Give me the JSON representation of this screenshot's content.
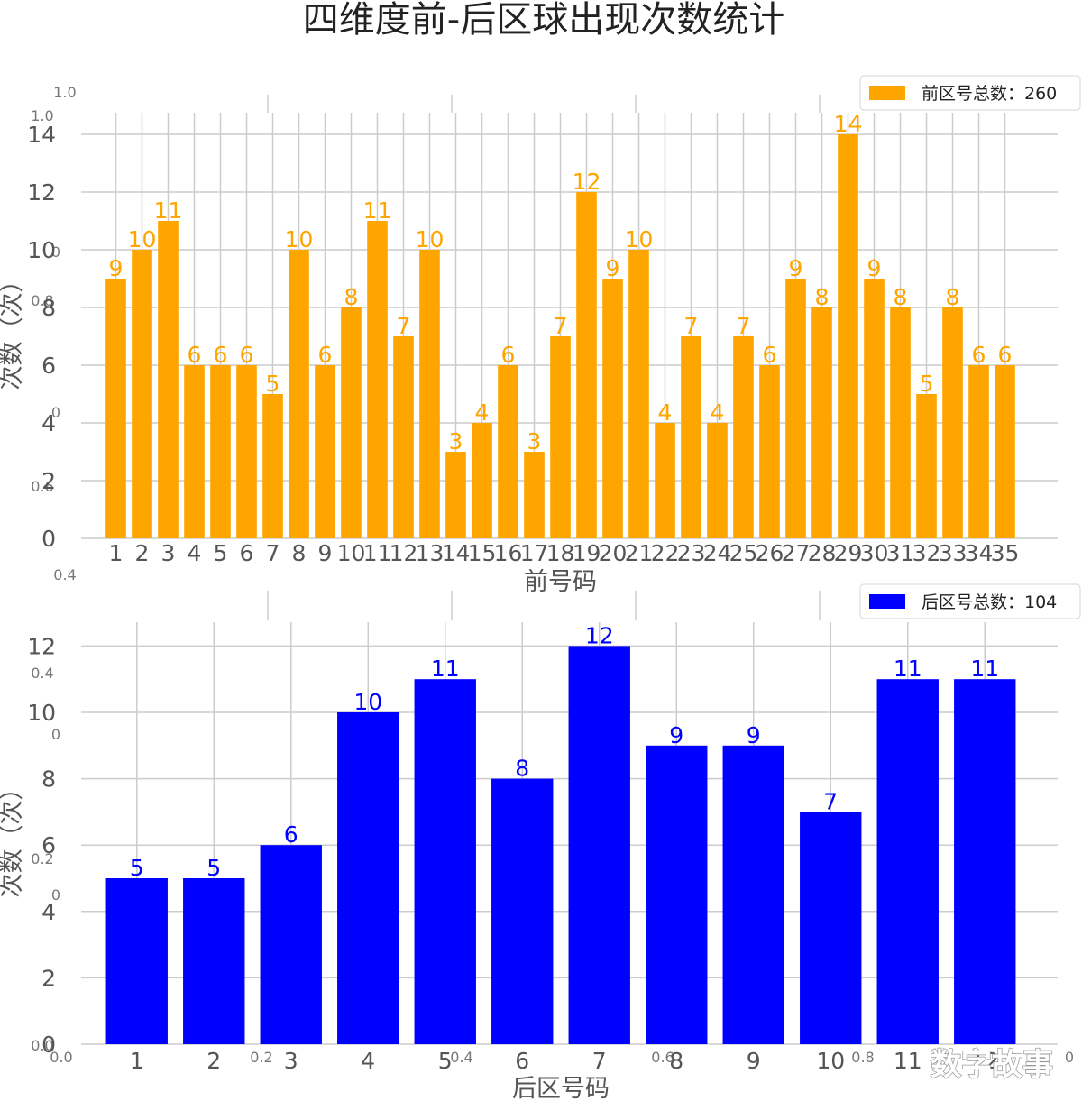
{
  "title": "四维度前-后区球出现次数统计",
  "watermark": "数字故事",
  "colors": {
    "front": "#FFA500",
    "back": "#0000FF",
    "grid": "#cccccc",
    "text": "#555555"
  },
  "chart_data": [
    {
      "type": "bar",
      "categories": [
        "1",
        "2",
        "3",
        "4",
        "5",
        "6",
        "7",
        "8",
        "9",
        "10",
        "11",
        "12",
        "13",
        "14",
        "15",
        "16",
        "17",
        "18",
        "19",
        "20",
        "21",
        "22",
        "23",
        "24",
        "25",
        "26",
        "27",
        "28",
        "29",
        "30",
        "31",
        "32",
        "33",
        "34",
        "35"
      ],
      "values": [
        9,
        10,
        11,
        6,
        6,
        6,
        5,
        10,
        6,
        8,
        11,
        7,
        10,
        3,
        4,
        6,
        3,
        7,
        12,
        9,
        10,
        4,
        7,
        4,
        7,
        6,
        9,
        8,
        14,
        9,
        8,
        5,
        8,
        6,
        6
      ],
      "xlabel": "前号码",
      "ylabel": "次数（次）",
      "ylim": [
        0,
        14.5
      ],
      "yticks": [
        0,
        2,
        4,
        6,
        8,
        10,
        12,
        14
      ],
      "legend": "前区号总数：260",
      "legend_position": "top-right",
      "grid": true,
      "color": "#FFA500"
    },
    {
      "type": "bar",
      "categories": [
        "1",
        "2",
        "3",
        "4",
        "5",
        "6",
        "7",
        "8",
        "9",
        "10",
        "11",
        "12"
      ],
      "values": [
        5,
        5,
        6,
        10,
        11,
        8,
        12,
        9,
        9,
        7,
        11,
        11
      ],
      "xlabel": "后区号码",
      "ylabel": "次数（次）",
      "ylim": [
        0,
        12.5
      ],
      "yticks": [
        0,
        2,
        4,
        6,
        8,
        10,
        12
      ],
      "legend": "后区号总数：104",
      "legend_position": "top-right",
      "grid": true,
      "color": "#0000FF"
    }
  ],
  "ghost_ticks": [
    "1.0",
    "1.0",
    "0",
    "0.8",
    "0",
    "0.6",
    "0.4",
    "0.4",
    "0",
    "0.2",
    "0",
    "0.0",
    "0.0",
    "0.2",
    "0.4",
    "0.6",
    "0.8",
    "0"
  ]
}
